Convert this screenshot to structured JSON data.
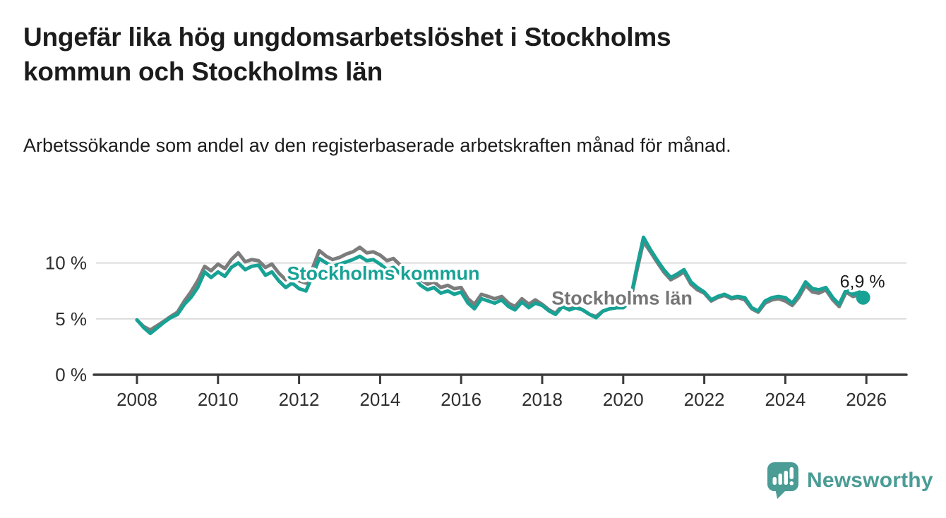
{
  "header": {
    "title": "Ungefär lika hög ungdomsarbetslöshet i Stockholms kommun och Stockholms län",
    "subtitle": "Arbetssökande som andel av den registerbaserade arbetskraften månad för månad."
  },
  "chart_data": {
    "type": "line",
    "title": "Ungefär lika hög ungdomsarbetslöshet i Stockholms kommun och Stockholms län",
    "xlabel": "",
    "ylabel": "Arbetssökande som andel av den registerbaserade arbetskraften",
    "unit": "%",
    "grid": "horizontal",
    "legend_position": "inline-annotations",
    "xlim": [
      2007.8,
      2026.95
    ],
    "ylim": [
      0,
      13.8
    ],
    "x_ticks": [
      {
        "value": 2008,
        "label": "2008"
      },
      {
        "value": 2010,
        "label": "2010"
      },
      {
        "value": 2012,
        "label": "2012"
      },
      {
        "value": 2014,
        "label": "2014"
      },
      {
        "value": 2016,
        "label": "2016"
      },
      {
        "value": 2018,
        "label": "2018"
      },
      {
        "value": 2020,
        "label": "2020"
      },
      {
        "value": 2022,
        "label": "2022"
      },
      {
        "value": 2024,
        "label": "2024"
      },
      {
        "value": 2026,
        "label": "2026"
      }
    ],
    "y_ticks": [
      {
        "value": 10,
        "label": "10 %"
      },
      {
        "value": 5,
        "label": "5 %"
      },
      {
        "value": 0,
        "label": "0 %"
      }
    ],
    "x": [
      2008.0,
      2008.17,
      2008.33,
      2008.5,
      2008.67,
      2008.83,
      2009.0,
      2009.17,
      2009.33,
      2009.5,
      2009.67,
      2009.83,
      2010.0,
      2010.17,
      2010.33,
      2010.5,
      2010.67,
      2010.83,
      2011.0,
      2011.17,
      2011.33,
      2011.5,
      2011.67,
      2011.83,
      2012.0,
      2012.17,
      2012.33,
      2012.5,
      2012.67,
      2012.83,
      2013.0,
      2013.17,
      2013.33,
      2013.5,
      2013.67,
      2013.83,
      2014.0,
      2014.17,
      2014.33,
      2014.5,
      2014.67,
      2014.83,
      2015.0,
      2015.17,
      2015.33,
      2015.5,
      2015.67,
      2015.83,
      2016.0,
      2016.17,
      2016.33,
      2016.5,
      2016.67,
      2016.83,
      2017.0,
      2017.17,
      2017.33,
      2017.5,
      2017.67,
      2017.83,
      2018.0,
      2018.17,
      2018.33,
      2018.5,
      2018.67,
      2018.83,
      2019.0,
      2019.17,
      2019.33,
      2019.5,
      2019.67,
      2019.83,
      2020.0,
      2020.17,
      2020.33,
      2020.5,
      2020.67,
      2020.83,
      2021.0,
      2021.17,
      2021.33,
      2021.5,
      2021.67,
      2021.83,
      2022.0,
      2022.17,
      2022.33,
      2022.5,
      2022.67,
      2022.83,
      2023.0,
      2023.17,
      2023.33,
      2023.5,
      2023.67,
      2023.83,
      2024.0,
      2024.17,
      2024.33,
      2024.5,
      2024.67,
      2024.83,
      2025.0,
      2025.17,
      2025.33,
      2025.5,
      2025.67,
      2025.83,
      2025.92
    ],
    "series": [
      {
        "name": "Stockholms län",
        "color": "#7c7c7c",
        "values": [
          4.9,
          4.3,
          4.0,
          4.4,
          4.8,
          5.2,
          5.6,
          6.6,
          7.4,
          8.4,
          9.7,
          9.3,
          9.9,
          9.5,
          10.3,
          10.9,
          10.1,
          10.3,
          10.2,
          9.6,
          9.9,
          9.1,
          8.5,
          8.9,
          8.4,
          8.2,
          9.5,
          11.1,
          10.6,
          10.3,
          10.5,
          10.8,
          11.0,
          11.4,
          10.9,
          11.0,
          10.7,
          10.2,
          10.4,
          9.8,
          9.3,
          9.4,
          8.5,
          8.1,
          8.3,
          7.8,
          8.0,
          7.7,
          7.8,
          6.8,
          6.3,
          7.2,
          7.0,
          6.8,
          7.0,
          6.4,
          6.1,
          6.8,
          6.3,
          6.7,
          6.3,
          5.8,
          5.5,
          6.2,
          5.9,
          6.1,
          5.8,
          5.4,
          5.2,
          5.7,
          5.9,
          6.0,
          6.0,
          6.5,
          9.2,
          11.9,
          11.0,
          10.1,
          9.2,
          8.5,
          8.8,
          9.2,
          8.1,
          7.6,
          7.3,
          6.6,
          6.9,
          7.1,
          6.8,
          6.9,
          6.7,
          5.9,
          5.6,
          6.4,
          6.7,
          6.8,
          6.6,
          6.2,
          6.9,
          8.0,
          7.4,
          7.3,
          7.6,
          6.7,
          6.1,
          7.4,
          7.0,
          7.2,
          6.8
        ]
      },
      {
        "name": "Stockholms kommun",
        "color": "#17a295",
        "end_dot": true,
        "end_label": "6,9 %",
        "values": [
          4.9,
          4.2,
          3.7,
          4.2,
          4.7,
          5.1,
          5.4,
          6.3,
          6.9,
          7.8,
          9.2,
          8.7,
          9.2,
          8.8,
          9.6,
          10.0,
          9.4,
          9.7,
          9.8,
          8.9,
          9.2,
          8.4,
          7.8,
          8.2,
          7.7,
          7.5,
          8.8,
          10.4,
          10.0,
          9.7,
          9.9,
          10.1,
          10.3,
          10.6,
          10.2,
          10.3,
          9.9,
          9.4,
          9.6,
          9.0,
          8.6,
          8.7,
          8.0,
          7.6,
          7.8,
          7.3,
          7.5,
          7.2,
          7.4,
          6.4,
          5.9,
          6.8,
          6.6,
          6.4,
          6.7,
          6.1,
          5.8,
          6.5,
          6.0,
          6.4,
          6.2,
          5.7,
          5.4,
          6.1,
          5.8,
          6.0,
          5.8,
          5.4,
          5.1,
          5.7,
          5.9,
          6.0,
          6.0,
          6.6,
          9.5,
          12.3,
          11.2,
          10.3,
          9.4,
          8.7,
          9.0,
          9.4,
          8.3,
          7.8,
          7.4,
          6.7,
          7.0,
          7.2,
          6.9,
          7.0,
          6.9,
          6.0,
          5.7,
          6.6,
          6.9,
          7.0,
          6.9,
          6.4,
          7.2,
          8.3,
          7.7,
          7.6,
          7.8,
          6.9,
          6.3,
          7.6,
          7.2,
          7.4,
          6.9
        ]
      }
    ],
    "series_labels": [
      {
        "text": "Stockholms kommun",
        "x": 2014.08,
        "y": 9.05,
        "color": "#17a295"
      },
      {
        "text": "Stockholms län",
        "x": 2019.97,
        "y": 6.85,
        "color": "#757575"
      }
    ],
    "end_annotation": {
      "text": "6,9 %",
      "x": 2025.92,
      "y": 6.9
    }
  },
  "branding": {
    "logo_text": "Newsworthy",
    "logo_color": "#4a9c95",
    "logo_icon": "speech-bubble-bar-chart-icon"
  },
  "colors": {
    "kommun_line": "#17a295",
    "lan_line": "#7c7c7c",
    "axis": "#3b3b3b",
    "tick_text": "#2f2f2f",
    "gridline": "#dcdcdc",
    "title_text": "#1c1c1c"
  }
}
